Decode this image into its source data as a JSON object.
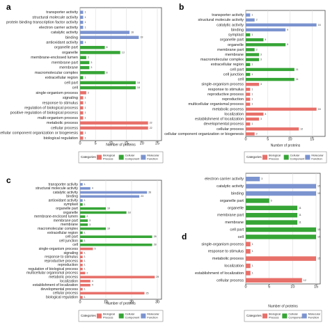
{
  "figure": {
    "panel_letters": [
      "a",
      "b",
      "c",
      "d"
    ]
  },
  "colors": {
    "Biological Process": "#e8706a",
    "Cellular Component": "#36a536",
    "Molecular Function": "#7b93cf"
  },
  "chart_data": [
    {
      "panel": "a",
      "type": "bar",
      "orientation": "horizontal",
      "xlabel": "Number of proteins",
      "xticks": [
        0,
        5,
        10,
        15,
        20,
        25
      ],
      "xlim": [
        0,
        25
      ],
      "legend_title": "Categories",
      "legend": [
        "Biological Process",
        "Cellular Component",
        "Molecular Function"
      ],
      "legend_placement": "bottom",
      "categories": [
        "transporter activity",
        "structural molecule activity",
        "protein binding transcription factor activity",
        "electron carrier activity",
        "catalytic activity",
        "binding",
        "antioxidant activity",
        "organelle part",
        "organelle",
        "membrane-enclosed lumen",
        "membrane part",
        "membrane",
        "macromolecular complex",
        "extracellular region",
        "cell part",
        "cell",
        "single-organism process",
        "signaling",
        "response to stimulus",
        "regulation of biological process",
        "positive regulation of biological process",
        "multi-organism process",
        "metabolic process",
        "cellular process",
        "cellular component organization or biogenesis",
        "biological regulation"
      ],
      "groups": [
        "Molecular Function",
        "Molecular Function",
        "Molecular Function",
        "Molecular Function",
        "Molecular Function",
        "Molecular Function",
        "Molecular Function",
        "Cellular Component",
        "Cellular Component",
        "Cellular Component",
        "Cellular Component",
        "Cellular Component",
        "Cellular Component",
        "Cellular Component",
        "Cellular Component",
        "Cellular Component",
        "Biological Process",
        "Biological Process",
        "Biological Process",
        "Biological Process",
        "Biological Process",
        "Biological Process",
        "Biological Process",
        "Biological Process",
        "Biological Process",
        "Biological Process"
      ],
      "values": [
        1,
        1,
        1,
        1,
        16,
        19,
        1,
        8,
        13,
        2,
        3,
        3,
        8,
        1,
        18,
        18,
        2,
        1,
        1,
        1,
        1,
        1,
        22,
        22,
        1,
        1
      ],
      "value_labels": [
        "1",
        "1",
        "1",
        "1",
        "16",
        "19",
        "1",
        "8",
        "13",
        "2",
        "3",
        "3",
        "8",
        "1",
        "18",
        "18",
        "2",
        "1",
        "1",
        "1",
        "1",
        "1",
        "22",
        "22",
        "1",
        "1"
      ]
    },
    {
      "panel": "b",
      "type": "bar",
      "orientation": "horizontal",
      "xlabel": "Number of proteins",
      "xticks": [
        0,
        5,
        10,
        15
      ],
      "xlim": [
        0,
        17
      ],
      "legend_title": "Categories",
      "legend": [
        "Biological Process",
        "Cellular Component",
        "Molecular Function"
      ],
      "legend_placement": "bottom",
      "categories": [
        "transporter activity",
        "structural molecule activity",
        "catalytic activity",
        "binding",
        "symplast",
        "organelle part",
        "organelle",
        "membrane part",
        "membrane",
        "macromolecular complex",
        "extracellular region",
        "cell part",
        "cell junction",
        "cell",
        "single-organism process",
        "response to stimulus",
        "reproductive process",
        "reproduction",
        "multicellular organismal process",
        "metabolic process",
        "localization",
        "establishment of localization",
        "developmental process",
        "cellular process",
        "cellular component organization or biogenesis"
      ],
      "groups": [
        "Molecular Function",
        "Molecular Function",
        "Molecular Function",
        "Molecular Function",
        "Cellular Component",
        "Cellular Component",
        "Cellular Component",
        "Cellular Component",
        "Cellular Component",
        "Cellular Component",
        "Cellular Component",
        "Cellular Component",
        "Cellular Component",
        "Cellular Component",
        "Biological Process",
        "Biological Process",
        "Biological Process",
        "Biological Process",
        "Biological Process",
        "Biological Process",
        "Biological Process",
        "Biological Process",
        "Biological Process",
        "Biological Process",
        "Biological Process"
      ],
      "values": [
        1,
        2,
        16,
        9,
        1,
        4,
        9,
        2,
        3,
        3,
        1,
        11,
        1,
        11,
        3,
        1,
        1,
        1,
        1,
        16,
        4,
        3,
        1,
        12,
        2
      ],
      "value_labels": [
        "1",
        "2",
        "16",
        "9",
        "1",
        "4",
        "9",
        "2",
        "3",
        "3",
        "1",
        "11",
        "1",
        "11",
        "3",
        "1",
        "1",
        "1",
        "1",
        "16",
        "4",
        "3",
        "1",
        "12",
        "2"
      ]
    },
    {
      "panel": "c",
      "type": "bar",
      "orientation": "horizontal",
      "xlabel": "Number of proteins",
      "xticks": [
        0,
        10,
        20,
        30
      ],
      "xlim": [
        0,
        30
      ],
      "legend_title": "Categories",
      "legend": [
        "Biological Process",
        "Cellular Component",
        "Molecular Function"
      ],
      "legend_placement": "bottom",
      "categories": [
        "transporter activity",
        "structural molecule activity",
        "catalytic activity",
        "binding",
        "antioxidant activity",
        "symplast",
        "organelle part",
        "organelle",
        "membrane-enclosed lumen",
        "membrane part",
        "membrane",
        "macromolecular complex",
        "extracellular region",
        "cell part",
        "cell junction",
        "cell",
        "single-organism process",
        "signaling",
        "response to stimulus",
        "reproductive process",
        "reproduction",
        "regulation of biological process",
        "multicellular organismal process",
        "metabolic process",
        "localization",
        "establishment of localization",
        "developmental process",
        "cellular process",
        "biological regulation"
      ],
      "groups": [
        "Molecular Function",
        "Molecular Function",
        "Molecular Function",
        "Molecular Function",
        "Molecular Function",
        "Cellular Component",
        "Cellular Component",
        "Cellular Component",
        "Cellular Component",
        "Cellular Component",
        "Cellular Component",
        "Cellular Component",
        "Cellular Component",
        "Cellular Component",
        "Cellular Component",
        "Cellular Component",
        "Biological Process",
        "Biological Process",
        "Biological Process",
        "Biological Process",
        "Biological Process",
        "Biological Process",
        "Biological Process",
        "Biological Process",
        "Biological Process",
        "Biological Process",
        "Biological Process",
        "Biological Process",
        "Biological Process"
      ],
      "values": [
        1,
        4,
        26,
        23,
        1,
        1,
        10,
        18,
        2,
        3,
        3,
        10,
        1,
        28,
        1,
        28,
        5,
        1,
        1,
        1,
        1,
        1,
        2,
        29,
        4,
        4,
        1,
        25,
        1
      ],
      "value_labels": [
        "1",
        "4",
        "26",
        "23",
        "1",
        "1",
        "10",
        "18",
        "2",
        "3",
        "3",
        "10",
        "1",
        "28",
        "1",
        "28",
        "5",
        "1",
        "1",
        "1",
        "1",
        "1",
        "2",
        "29",
        "4",
        "4",
        "1",
        "25",
        "1"
      ]
    },
    {
      "panel": "d",
      "type": "bar",
      "orientation": "horizontal",
      "xlabel": "Number of proteins",
      "xticks": [
        0,
        5,
        10,
        15
      ],
      "xlim": [
        0,
        15
      ],
      "legend_title": "Categories",
      "legend": [
        "Biological Process",
        "Cellular Component",
        "Molecular Function"
      ],
      "legend_placement": "bottom",
      "categories": [
        "electron carrier activity",
        "catalytic activity",
        "binding",
        "organelle part",
        "organelle",
        "membrane part",
        "membrane",
        "cell part",
        "cell",
        "single-organism process",
        "response to stimulus",
        "metabolic process",
        "localization",
        "establishment of localization",
        "cellular process"
      ],
      "groups": [
        "Molecular Function",
        "Molecular Function",
        "Molecular Function",
        "Cellular Component",
        "Cellular Component",
        "Cellular Component",
        "Cellular Component",
        "Cellular Component",
        "Cellular Component",
        "Biological Process",
        "Biological Process",
        "Biological Process",
        "Biological Process",
        "Biological Process",
        "Biological Process"
      ],
      "values": [
        3,
        15,
        15,
        5,
        11,
        11,
        11,
        15,
        15,
        1,
        1,
        15,
        1,
        1,
        12
      ],
      "value_labels": [
        "3",
        "15",
        "15",
        "5",
        "11",
        "11",
        "11",
        "15",
        "15",
        "1",
        "1",
        "15",
        "1",
        "1",
        "12"
      ]
    }
  ]
}
